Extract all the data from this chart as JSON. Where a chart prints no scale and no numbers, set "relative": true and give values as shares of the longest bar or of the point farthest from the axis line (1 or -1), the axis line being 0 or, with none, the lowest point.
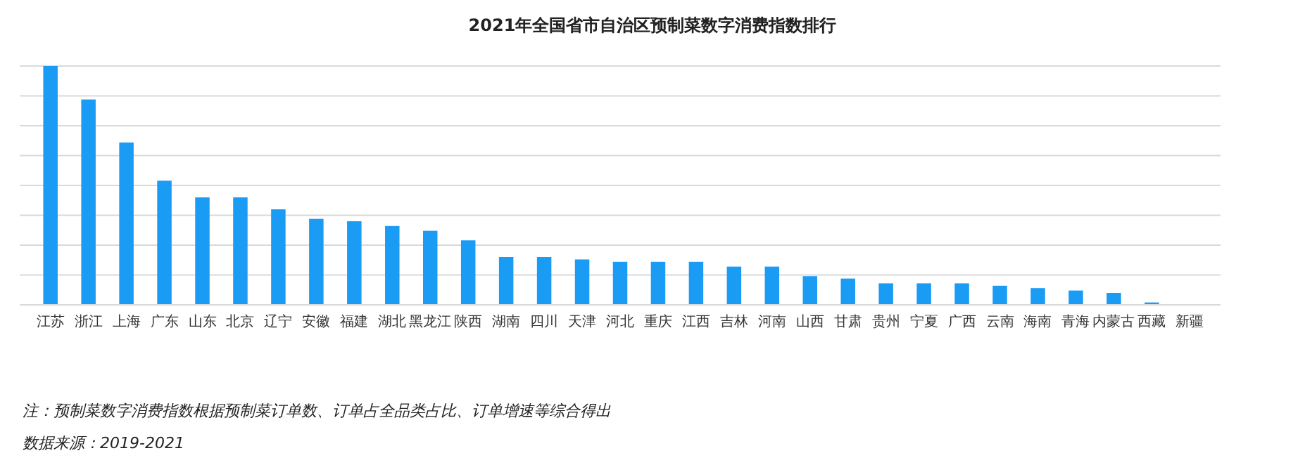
{
  "chart_data": {
    "type": "bar",
    "title": "2021年全国省市自治区预制菜数字消费指数排行",
    "relative": true,
    "grid": "y",
    "color": "#1a9cf5",
    "categories": [
      "江苏",
      "浙江",
      "上海",
      "广东",
      "山东",
      "北京",
      "辽宁",
      "安徽",
      "福建",
      "湖北",
      "黑龙江",
      "陕西",
      "湖南",
      "四川",
      "天津",
      "河北",
      "重庆",
      "江西",
      "吉林",
      "河南",
      "山西",
      "甘肃",
      "贵州",
      "宁夏",
      "广西",
      "云南",
      "海南",
      "青海",
      "内蒙古",
      "西藏",
      "新疆"
    ],
    "values": [
      1,
      0.86,
      0.68,
      0.52,
      0.45,
      0.45,
      0.4,
      0.36,
      0.35,
      0.33,
      0.31,
      0.27,
      0.2,
      0.2,
      0.19,
      0.18,
      0.18,
      0.18,
      0.16,
      0.16,
      0.12,
      0.11,
      0.09,
      0.09,
      0.09,
      0.08,
      0.07,
      0.06,
      0.05,
      0.01,
      0
    ],
    "annotations": [
      "注：预制菜数字消费指数根据预制菜订单数、订单占全品类占比、订单增速等综合得出",
      "数据来源：2019-2021"
    ]
  }
}
